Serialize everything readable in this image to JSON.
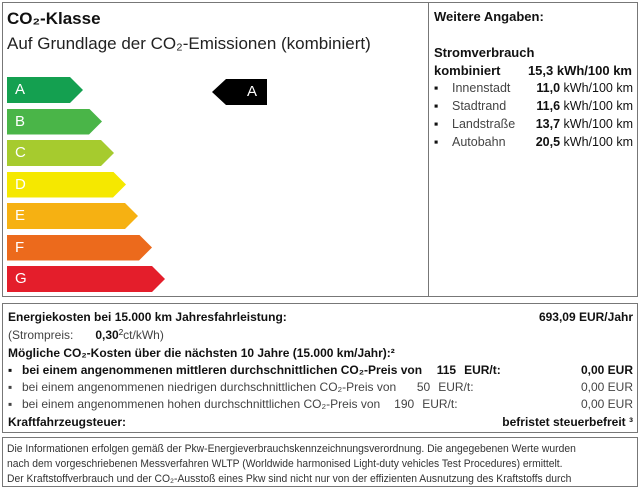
{
  "co2_class": {
    "title": "CO₂-Klasse",
    "subtitle": "Auf Grundlage der CO₂-Emissionen (kombiniert)",
    "classes": [
      {
        "label": "A",
        "color": "#14a050"
      },
      {
        "label": "B",
        "color": "#4ab548"
      },
      {
        "label": "C",
        "color": "#a6cb2e"
      },
      {
        "label": "D",
        "color": "#f5e800"
      },
      {
        "label": "E",
        "color": "#f6b112"
      },
      {
        "label": "F",
        "color": "#ec6a1c"
      },
      {
        "label": "G",
        "color": "#e41e2b"
      }
    ],
    "current": "A"
  },
  "details": {
    "title": "Weitere Angaben:",
    "consumption_label": "Stromverbrauch",
    "combined_label": "kombiniert",
    "combined_value": "15,3 kWh/100 km",
    "items": [
      {
        "label": "Innenstadt",
        "value": "11,0",
        "unit": "kWh/100 km"
      },
      {
        "label": "Stadtrand",
        "value": "11,6",
        "unit": "kWh/100 km"
      },
      {
        "label": "Landstraße",
        "value": "13,7",
        "unit": "kWh/100 km"
      },
      {
        "label": "Autobahn",
        "value": "20,5",
        "unit": "kWh/100 km"
      }
    ]
  },
  "costs": {
    "energy_label": "Energiekosten bei 15.000 km Jahresfahrleistung:",
    "energy_value": "693,09 EUR/Jahr",
    "price_label": "(Strompreis:",
    "price_value": "0,30",
    "price_sup": "2",
    "price_unit": "ct/kWh)",
    "co2_label": "Mögliche CO₂-Kosten über die nächsten 10 Jahre (15.000 km/Jahr):²",
    "co2_rows": [
      {
        "text": "bei einem angenommenen mittleren durchschnittlichen CO₂-Preis von",
        "price": "115",
        "unit": "EUR/t:",
        "value": "0,00 EUR"
      },
      {
        "text": "bei einem angenommenen niedrigen durchschnittlichen CO₂-Preis von",
        "price": "50",
        "unit": "EUR/t:",
        "value": "0,00 EUR"
      },
      {
        "text": "bei einem angenommenen hohen durchschnittlichen CO₂-Preis von",
        "price": "190",
        "unit": "EUR/t:",
        "value": "0,00 EUR"
      }
    ],
    "tax_label": "Kraftfahrzeugsteuer:",
    "tax_value": "befristet steuerbefreit ³"
  },
  "info": {
    "lines": [
      "Die Informationen erfolgen gemäß der Pkw-Energieverbrauchskennzeichnungsverordnung. Die angegebenen Werte wurden",
      "nach dem vorgeschriebenen Messverfahren WLTP (Worldwide harmonised Light-duty vehicles Test Procedures) ermittelt.",
      "Der Kraftstoffverbrauch und der CO₂-Ausstoß eines Pkw sind nicht nur von der effizienten Ausnutzung des Kraftstoffs durch"
    ]
  }
}
